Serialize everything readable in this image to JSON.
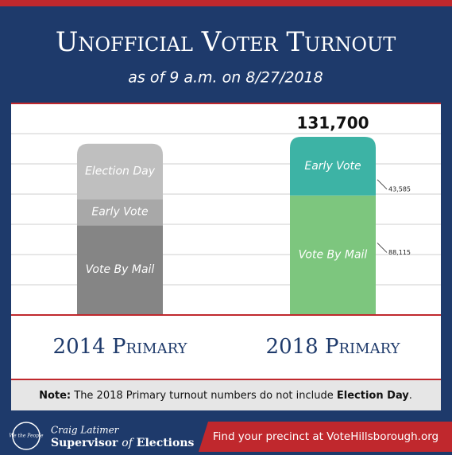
{
  "header": {
    "title": "Unofficial Voter Turnout",
    "subtitle": "as of 9 a.m. on 8/27/2018"
  },
  "chart_data": {
    "type": "stacked-bar",
    "categories": [
      "2014 Primary",
      "2018 Primary"
    ],
    "series": [
      {
        "name": "Vote By Mail",
        "colors": [
          "#858585",
          "#7dc67e"
        ],
        "values": [
          66000,
          88115
        ],
        "value_labels": [
          null,
          "88,115"
        ]
      },
      {
        "name": "Early Vote",
        "colors": [
          "#a8a8a8",
          "#3db3a5"
        ],
        "values": [
          19500,
          43585
        ],
        "value_labels": [
          null,
          "43,585"
        ]
      },
      {
        "name": "Election Day",
        "colors": [
          "#bfbfbf",
          null
        ],
        "values": [
          41000,
          null
        ]
      }
    ],
    "totals": [
      null,
      131700
    ],
    "total_labels": [
      null,
      "131,700"
    ]
  },
  "note": {
    "lead": "Note:",
    "text": "The 2018 Primary turnout numbers do not include",
    "emphasis": "Election Day",
    "end": "."
  },
  "footer": {
    "seal": "We the People",
    "name": "Craig Latimer",
    "office_pre": "Supervisor",
    "office_of": "of",
    "office_post": "Elections",
    "link": "Find your precinct at VoteHillsborough.org"
  }
}
